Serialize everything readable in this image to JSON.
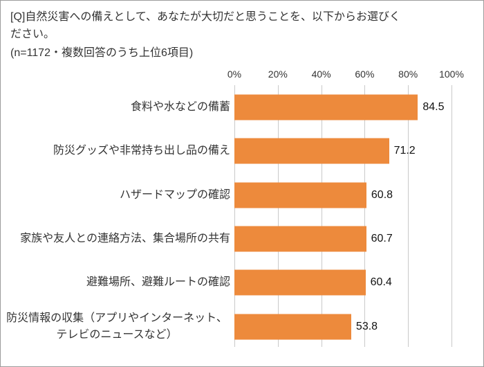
{
  "page": {
    "title": "[Q]自然災害への備えとして、あなたが大切だと思うことを、以下からお選びください。",
    "subtitle": "(n=1172・複数回答のうち上位6項目)"
  },
  "chart_data": {
    "type": "bar",
    "orientation": "horizontal",
    "title": "[Q]自然災害への備えとして、あなたが大切だと思うことを、以下からお選びください。",
    "subtitle": "(n=1172・複数回答のうち上位6項目)",
    "categories": [
      "食料や水などの備蓄",
      "防災グッズや非常持ち出し品の備え",
      "ハザードマップの確認",
      "家族や友人との連絡方法、集合場所の共有",
      "避難場所、避難ルートの確認",
      "防災情報の収集（アプリやインターネット、テレビのニュースなど）"
    ],
    "values": [
      84.5,
      71.2,
      60.8,
      60.7,
      60.4,
      53.8
    ],
    "x_ticks": [
      "0%",
      "20%",
      "40%",
      "60%",
      "80%",
      "100%"
    ],
    "xlim": [
      0,
      100
    ],
    "grid": true,
    "legend": "none",
    "bar_color": "#ED8A3C",
    "gridline_color": "#c9c9c9"
  }
}
